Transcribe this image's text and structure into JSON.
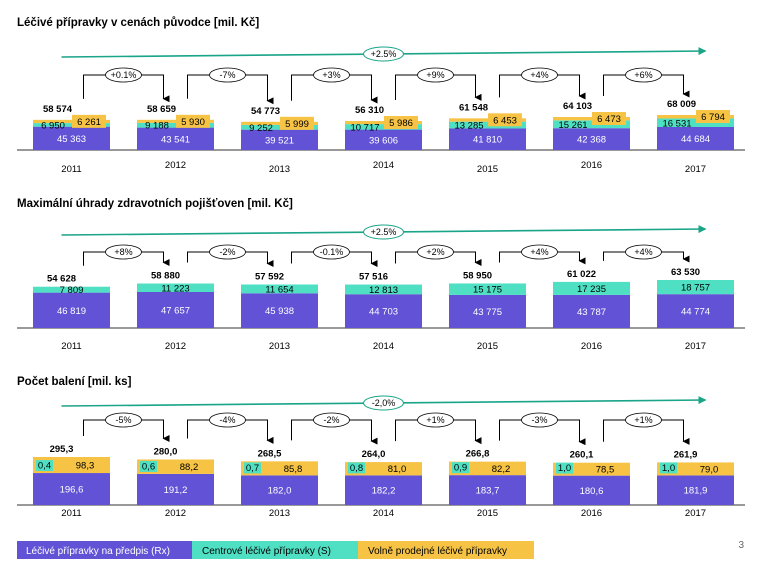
{
  "page_number": "3",
  "colors": {
    "rx": "#6152d6",
    "s": "#4fe0c4",
    "otc": "#f6c345",
    "arrow": "#1aa488",
    "axis": "#333333"
  },
  "legend": [
    {
      "name": "Léčivé přípravky na předpis (Rx)",
      "color_key": "rx"
    },
    {
      "name": "Centrové léčivé přípravky (S)",
      "color_key": "s"
    },
    {
      "name": "Volně prodejné léčivé přípravky",
      "color_key": "otc"
    }
  ],
  "chart_data": [
    {
      "type": "bar",
      "stacked": true,
      "title": "Léčivé přípravky v cenách původce [mil. Kč]",
      "categories": [
        "2011",
        "2012",
        "2013",
        "2014",
        "2015",
        "2016",
        "2017"
      ],
      "series": [
        {
          "name": "Léčivé přípravky na předpis (Rx)",
          "color_key": "rx",
          "values": [
            45363,
            43541,
            39521,
            39606,
            41810,
            42368,
            44684
          ],
          "labels": [
            "45 363",
            "43 541",
            "39 521",
            "39 606",
            "41 810",
            "42 368",
            "44 684"
          ]
        },
        {
          "name": "Centrové léčivé přípravky (S)",
          "color_key": "s",
          "values": [
            6950,
            9188,
            9252,
            10717,
            13285,
            15261,
            16531
          ],
          "labels": [
            "6 950",
            "9 188",
            "9 252",
            "10 717",
            "13 285",
            "15 261",
            "16 531"
          ]
        },
        {
          "name": "Volně prodejné léčivé přípravky",
          "color_key": "otc",
          "values": [
            6261,
            5930,
            5999,
            5986,
            6453,
            6473,
            6794
          ],
          "labels": [
            "6 261",
            "5 930",
            "5 999",
            "5 986",
            "6 453",
            "6 473",
            "6 794"
          ]
        }
      ],
      "totals": [
        58574,
        58659,
        54773,
        56310,
        61548,
        64103,
        68009
      ],
      "total_labels": [
        "58 574",
        "58 659",
        "54 773",
        "56 310",
        "61 548",
        "64 103",
        "68 009"
      ],
      "yoy_changes": [
        "+0.1%",
        "-7%",
        "+3%",
        "+9%",
        "+4%",
        "+6%"
      ],
      "cagr": "+2.5%"
    },
    {
      "type": "bar",
      "stacked": true,
      "title": "Maximální úhrady zdravotních pojišťoven [mil. Kč]",
      "categories": [
        "2011",
        "2012",
        "2013",
        "2014",
        "2015",
        "2016",
        "2017"
      ],
      "series": [
        {
          "name": "Léčivé přípravky na předpis (Rx)",
          "color_key": "rx",
          "values": [
            46819,
            47657,
            45938,
            44703,
            43775,
            43787,
            44774
          ],
          "labels": [
            "46 819",
            "47 657",
            "45 938",
            "44 703",
            "43 775",
            "43 787",
            "44 774"
          ]
        },
        {
          "name": "Centrové léčivé přípravky (S)",
          "color_key": "s",
          "values": [
            7809,
            11223,
            11654,
            12813,
            15175,
            17235,
            18757
          ],
          "labels": [
            "7 809",
            "11 223",
            "11 654",
            "12 813",
            "15 175",
            "17 235",
            "18 757"
          ]
        }
      ],
      "totals": [
        54628,
        58880,
        57592,
        57516,
        58950,
        61022,
        63530
      ],
      "total_labels": [
        "54 628",
        "58 880",
        "57 592",
        "57 516",
        "58 950",
        "61 022",
        "63 530"
      ],
      "yoy_changes": [
        "+8%",
        "-2%",
        "-0.1%",
        "+2%",
        "+4%",
        "+4%"
      ],
      "cagr": "+2.5%"
    },
    {
      "type": "bar",
      "stacked": true,
      "title": "Počet balení [mil. ks]",
      "categories": [
        "2011",
        "2012",
        "2013",
        "2014",
        "2015",
        "2016",
        "2017"
      ],
      "series": [
        {
          "name": "Léčivé přípravky na předpis (Rx)",
          "color_key": "rx",
          "values": [
            196.6,
            191.2,
            182.0,
            182.2,
            183.7,
            180.6,
            181.9
          ],
          "labels": [
            "196,6",
            "191,2",
            "182,0",
            "182,2",
            "183,7",
            "180,6",
            "181,9"
          ]
        },
        {
          "name": "Centrové léčivé přípravky (S)",
          "color_key": "s",
          "values": [
            0.4,
            0.6,
            0.7,
            0.8,
            0.9,
            1.0,
            1.0
          ],
          "labels": [
            "0,4",
            "0,6",
            "0,7",
            "0,8",
            "0,9",
            "1,0",
            "1,0"
          ]
        },
        {
          "name": "Volně prodejné léčivé přípravky",
          "color_key": "otc",
          "values": [
            98.3,
            88.2,
            85.8,
            81.0,
            82.2,
            78.5,
            79.0
          ],
          "labels": [
            "98,3",
            "88,2",
            "85,8",
            "81,0",
            "82,2",
            "78,5",
            "79,0"
          ]
        }
      ],
      "totals": [
        295.3,
        280.0,
        268.5,
        264.0,
        266.8,
        260.1,
        261.9
      ],
      "total_labels": [
        "295,3",
        "280,0",
        "268,5",
        "264,0",
        "266,8",
        "260,1",
        "261,9"
      ],
      "yoy_changes": [
        "-5%",
        "-4%",
        "-2%",
        "+1%",
        "-3%",
        "+1%"
      ],
      "cagr": "-2,0%"
    }
  ]
}
